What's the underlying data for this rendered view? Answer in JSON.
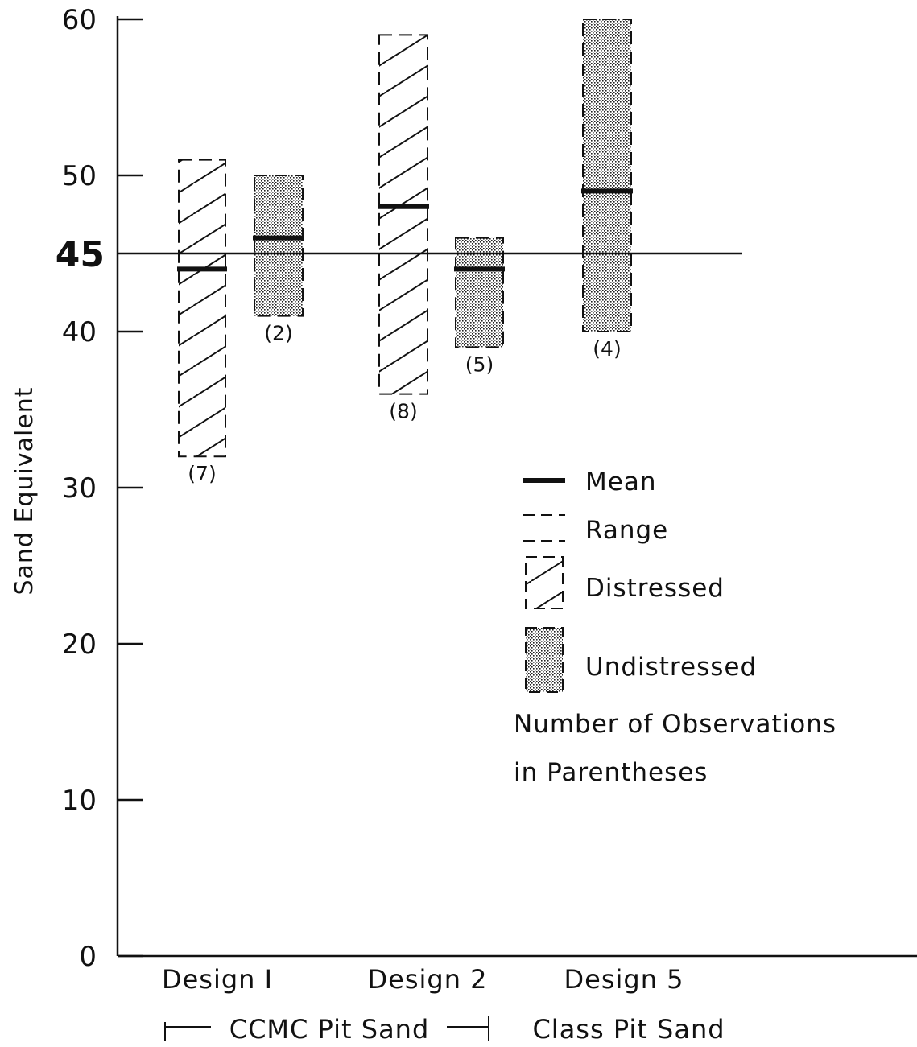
{
  "chart_data": {
    "type": "range-box",
    "ylabel": "Sand Equivalent",
    "ylim": [
      0,
      60
    ],
    "yticks": [
      "0",
      "10",
      "20",
      "30",
      "40",
      "50",
      "60"
    ],
    "reference_line": {
      "value": 45,
      "label": "45"
    },
    "categories": [
      "Design I",
      "Design 2",
      "Design 5"
    ],
    "groups": [
      {
        "label": "CCMC Pit Sand",
        "categories": [
          "Design I",
          "Design 2"
        ]
      },
      {
        "label": "Class Pit Sand",
        "categories": [
          "Design 5"
        ]
      }
    ],
    "series": [
      {
        "name": "Distressed",
        "pattern": "hatch",
        "boxes": [
          {
            "category": "Design I",
            "min": 32,
            "max": 51,
            "mean": 44,
            "count": "(7)"
          },
          {
            "category": "Design 2",
            "min": 36,
            "max": 59,
            "mean": 48,
            "count": "(8)"
          }
        ]
      },
      {
        "name": "Undistressed",
        "pattern": "dots",
        "boxes": [
          {
            "category": "Design I",
            "min": 41,
            "max": 50,
            "mean": 46,
            "count": "(2)"
          },
          {
            "category": "Design 2",
            "min": 39,
            "max": 46,
            "mean": 44,
            "count": "(5)"
          },
          {
            "category": "Design 5",
            "min": 40,
            "max": 60,
            "mean": 49,
            "count": "(4)"
          }
        ]
      }
    ],
    "legend": {
      "placement": "right",
      "items": [
        "Mean",
        "Range",
        "Distressed",
        "Undistressed"
      ],
      "note_lines": [
        "Number of Observations",
        "in Parentheses"
      ]
    }
  }
}
